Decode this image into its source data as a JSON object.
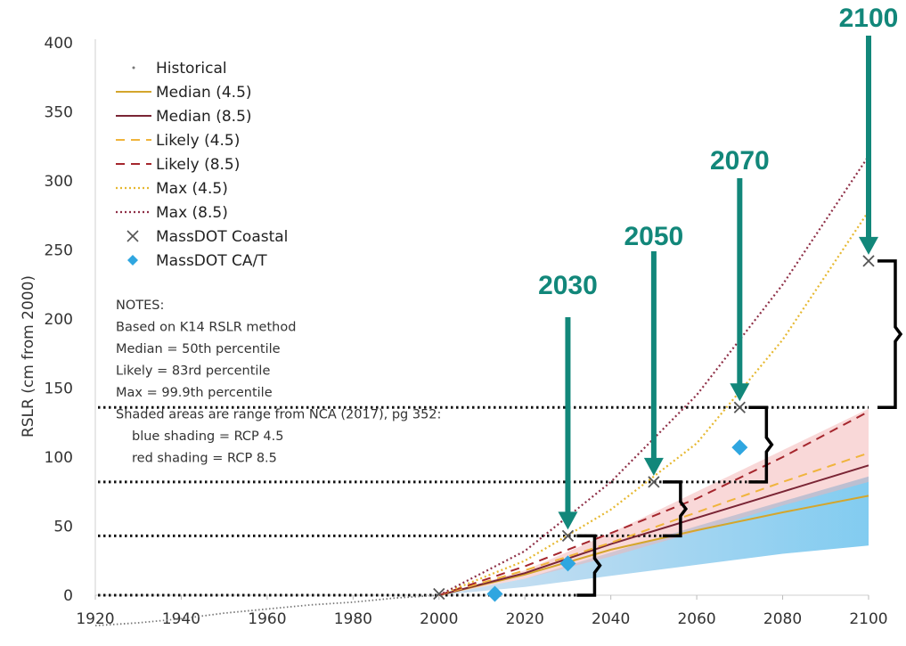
{
  "chart_data": {
    "type": "line",
    "title": "",
    "xlabel": "",
    "ylabel": "RSLR (cm from 2000)",
    "xlim": [
      1920,
      2100
    ],
    "ylim": [
      0,
      400
    ],
    "xticks": [
      "1920",
      "1940",
      "1960",
      "1980",
      "2000",
      "2020",
      "2040",
      "2060",
      "2080",
      "2100"
    ],
    "yticks": [
      "0",
      "50",
      "100",
      "150",
      "200",
      "250",
      "300",
      "350",
      "400"
    ],
    "grid": false,
    "legend_position": "top-left",
    "colors": {
      "median45": "#d4a62c",
      "median85": "#7a2535",
      "likely45": "#f0b43c",
      "likely85": "#a5262d",
      "max45": "#e6b830",
      "max85": "#8e2f46",
      "historical": "#777777",
      "coastal": "#555555",
      "cat": "#2fa6e0",
      "callout": "#12877a",
      "blueShade": "#9ecae8",
      "redShade": "#f4b2b2"
    },
    "legend": [
      {
        "label": "Historical",
        "key": "historical",
        "style": "dot"
      },
      {
        "label": "Median (4.5)",
        "key": "median45",
        "style": "solid"
      },
      {
        "label": "Median (8.5)",
        "key": "median85",
        "style": "solid"
      },
      {
        "label": "Likely (4.5)",
        "key": "likely45",
        "style": "dashed"
      },
      {
        "label": "Likely (8.5)",
        "key": "likely85",
        "style": "dashed"
      },
      {
        "label": "Max (4.5)",
        "key": "max45",
        "style": "dotted"
      },
      {
        "label": "Max (8.5)",
        "key": "max85",
        "style": "dotted"
      },
      {
        "label": "MassDOT Coastal",
        "key": "coastal",
        "style": "x"
      },
      {
        "label": "MassDOT CA/T",
        "key": "cat",
        "style": "diamond"
      }
    ],
    "notes": [
      "NOTES:",
      "Based on K14 RSLR method",
      "Median = 50th percentile",
      "Likely = 83rd percentile",
      "Max = 99.9th percentile",
      "Shaded areas are range from NCA (2017), pg 352:",
      "blue shading = RCP 4.5",
      "red shading = RCP 8.5"
    ],
    "historical": {
      "x": [
        1920,
        1930,
        1940,
        1950,
        1960,
        1970,
        1980,
        1990,
        2000
      ],
      "y": [
        -22,
        -20,
        -17,
        -13,
        -10,
        -7,
        -5,
        -2,
        0
      ]
    },
    "series": [
      {
        "name": "Median (4.5)",
        "key": "median45",
        "style": "solid",
        "x": [
          2000,
          2020,
          2040,
          2060,
          2080,
          2100
        ],
        "y": [
          0,
          15,
          33,
          47,
          60,
          72
        ]
      },
      {
        "name": "Median (8.5)",
        "key": "median85",
        "style": "solid",
        "x": [
          2000,
          2020,
          2040,
          2060,
          2080,
          2100
        ],
        "y": [
          0,
          16,
          37,
          56,
          75,
          94
        ]
      },
      {
        "name": "Likely (4.5)",
        "key": "likely45",
        "style": "dashed",
        "x": [
          2000,
          2020,
          2040,
          2060,
          2080,
          2100
        ],
        "y": [
          0,
          18,
          38,
          60,
          82,
          103
        ]
      },
      {
        "name": "Likely (8.5)",
        "key": "likely85",
        "style": "dashed",
        "x": [
          2000,
          2020,
          2040,
          2060,
          2080,
          2100
        ],
        "y": [
          0,
          21,
          45,
          70,
          100,
          133
        ]
      },
      {
        "name": "Max (4.5)",
        "key": "max45",
        "style": "dotted",
        "x": [
          2000,
          2020,
          2040,
          2060,
          2080,
          2100
        ],
        "y": [
          0,
          25,
          62,
          110,
          185,
          278
        ]
      },
      {
        "name": "Max (8.5)",
        "key": "max85",
        "style": "dotted",
        "x": [
          2000,
          2020,
          2040,
          2060,
          2080,
          2100
        ],
        "y": [
          0,
          32,
          82,
          145,
          225,
          318
        ]
      }
    ],
    "shading": [
      {
        "name": "RCP 4.5",
        "key": "blueShade",
        "x": [
          2000,
          2020,
          2040,
          2060,
          2080,
          2100
        ],
        "low": [
          0,
          6,
          14,
          22,
          30,
          36
        ],
        "high": [
          0,
          12,
          31,
          50,
          68,
          86
        ]
      },
      {
        "name": "RCP 8.5",
        "key": "redShade",
        "x": [
          2000,
          2020,
          2040,
          2060,
          2080,
          2100
        ],
        "low": [
          0,
          12,
          28,
          46,
          65,
          82
        ],
        "high": [
          0,
          18,
          45,
          75,
          105,
          135
        ]
      }
    ],
    "coastal_points": {
      "x": [
        2000,
        2030,
        2050,
        2070,
        2100
      ],
      "y": [
        1,
        43,
        82,
        136,
        242
      ]
    },
    "cat_points": {
      "x": [
        2013,
        2030,
        2070
      ],
      "y": [
        1,
        23,
        107
      ]
    },
    "callouts": [
      {
        "label": "2030",
        "x": 2030,
        "y": 43,
        "bracket_low": 0,
        "bracket_high": 43
      },
      {
        "label": "2050",
        "x": 2050,
        "y": 82,
        "bracket_low": 43,
        "bracket_high": 82
      },
      {
        "label": "2070",
        "x": 2070,
        "y": 136,
        "bracket_low": 82,
        "bracket_high": 136
      },
      {
        "label": "2100",
        "x": 2100,
        "y": 242,
        "bracket_low": 136,
        "bracket_high": 242
      }
    ],
    "reference_lines": [
      0,
      43,
      82,
      136
    ]
  }
}
